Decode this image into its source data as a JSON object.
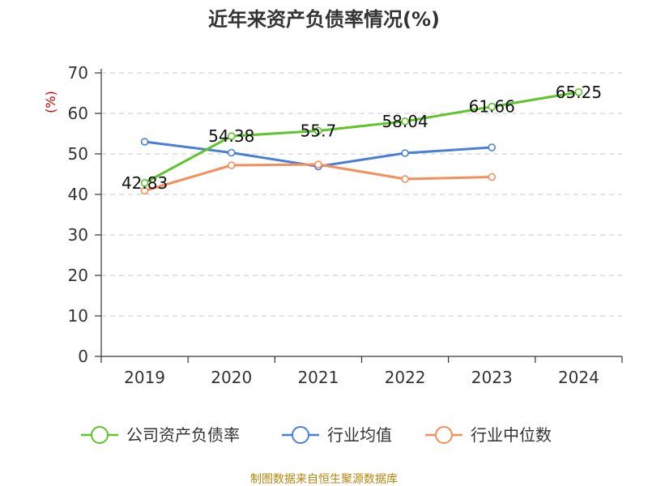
{
  "chart_data": {
    "type": "line",
    "title": "近年来资产负债率情况(%)",
    "ylabel": "(%)",
    "categories": [
      "2019",
      "2020",
      "2021",
      "2022",
      "2023",
      "2024"
    ],
    "ylim": [
      0,
      70
    ],
    "yticks": [
      0,
      10,
      20,
      30,
      40,
      50,
      60,
      70
    ],
    "grid": true,
    "legend_position": "bottom",
    "series": [
      {
        "name": "公司资产负债率",
        "color": "#5ec42a",
        "values": [
          42.83,
          54.38,
          55.7,
          58.04,
          61.66,
          65.25
        ],
        "labels": [
          "42.83",
          "54.38",
          "55.7",
          "58.04",
          "61.66",
          "65.25"
        ]
      },
      {
        "name": "行业均值",
        "color": "#4a7fd6",
        "values": [
          53.0,
          50.3,
          46.9,
          50.2,
          51.6,
          null
        ]
      },
      {
        "name": "行业中位数",
        "color": "#f58e5a",
        "values": [
          40.9,
          47.2,
          47.4,
          43.8,
          44.3,
          null
        ]
      }
    ]
  },
  "source": "制图数据来自恒生聚源数据库"
}
